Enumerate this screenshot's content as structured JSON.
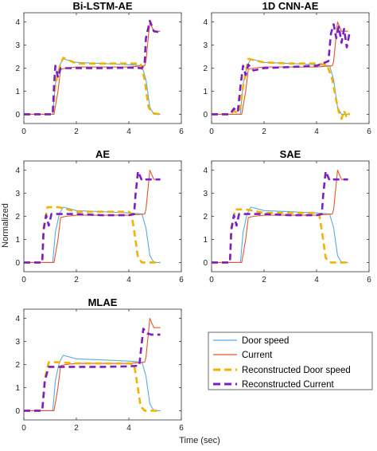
{
  "figure": {
    "xlabel": "Time (sec)",
    "ylabel": "Normalized"
  },
  "legend": [
    {
      "label": "Door speed",
      "color": "#5aa9e6",
      "dashed": false
    },
    {
      "label": "Current",
      "color": "#e4572e",
      "dashed": false
    },
    {
      "label": "Reconstructed Door speed",
      "color": "#f0b400",
      "dashed": true
    },
    {
      "label": "Reconstructed Current",
      "color": "#7b1fc2",
      "dashed": true
    }
  ],
  "chart_data": [
    {
      "type": "line",
      "title": "Bi-LSTM-AE",
      "xlim": [
        0,
        6
      ],
      "ylim": [
        -0.4,
        4.4
      ],
      "xticks": [
        0,
        2,
        4,
        6
      ],
      "yticks": [
        0,
        1,
        2,
        3,
        4
      ],
      "series": [
        {
          "name": "Door speed",
          "x": [
            0,
            1.1,
            1.2,
            1.35,
            1.5,
            2,
            3,
            4,
            4.5,
            4.65,
            4.8,
            4.95,
            5.2
          ],
          "y": [
            0,
            0,
            1.3,
            2.1,
            2.4,
            2.25,
            2.2,
            2.15,
            2.1,
            1.5,
            0.3,
            0,
            0
          ]
        },
        {
          "name": "Current",
          "x": [
            0,
            1.15,
            1.3,
            1.4,
            1.6,
            2,
            3,
            4,
            4.6,
            4.65,
            4.8,
            4.95,
            5.2
          ],
          "y": [
            0,
            0,
            1,
            1.95,
            2,
            2.05,
            2.05,
            2.05,
            2.1,
            2.3,
            4,
            3.6,
            3.6
          ]
        },
        {
          "name": "Reconstructed Door speed",
          "x": [
            0,
            1.1,
            1.2,
            1.4,
            1.5,
            2,
            3,
            4,
            4.45,
            4.6,
            4.75,
            4.9,
            5.2
          ],
          "y": [
            0,
            0,
            1.3,
            2.2,
            2.45,
            2.2,
            2.2,
            2.2,
            2.2,
            1.5,
            0.3,
            0.05,
            0
          ]
        },
        {
          "name": "Reconstructed Current",
          "x": [
            0,
            1.1,
            1.15,
            1.2,
            1.3,
            1.4,
            1.6,
            2,
            3,
            4,
            4.5,
            4.6,
            4.65,
            4.8,
            4.95,
            5.2
          ],
          "y": [
            0,
            0,
            1.2,
            2.1,
            1.6,
            2,
            2,
            2,
            2,
            2.02,
            2,
            2.2,
            3.3,
            4.05,
            3.6,
            3.55
          ]
        }
      ]
    },
    {
      "type": "line",
      "title": "1D CNN-AE",
      "xlim": [
        0,
        6
      ],
      "ylim": [
        -0.4,
        4.4
      ],
      "xticks": [
        0,
        2,
        4,
        6
      ],
      "yticks": [
        0,
        1,
        2,
        3,
        4
      ],
      "series": [
        {
          "name": "Door speed",
          "x": [
            0,
            1.1,
            1.2,
            1.35,
            1.5,
            2,
            3,
            4,
            4.5,
            4.65,
            4.8,
            4.95,
            5.2
          ],
          "y": [
            0,
            0,
            1.3,
            2.1,
            2.4,
            2.25,
            2.2,
            2.15,
            2.1,
            1.5,
            0.3,
            0,
            0
          ]
        },
        {
          "name": "Current",
          "x": [
            0,
            1.15,
            1.3,
            1.4,
            1.6,
            2,
            3,
            4,
            4.6,
            4.65,
            4.8,
            4.95,
            5.2
          ],
          "y": [
            0,
            0,
            1,
            1.95,
            2,
            2.05,
            2.05,
            2.05,
            2.1,
            2.3,
            4,
            3.6,
            3.6
          ]
        },
        {
          "name": "Reconstructed Door speed",
          "x": [
            0,
            0.7,
            0.85,
            1,
            1.1,
            1.2,
            1.4,
            1.6,
            2,
            3,
            4,
            4.4,
            4.6,
            4.75,
            4.85,
            4.95,
            5.05,
            5.15,
            5.25
          ],
          "y": [
            0,
            0,
            0.15,
            0.05,
            0.35,
            1.2,
            2.4,
            2.35,
            2.25,
            2.2,
            2.2,
            2.15,
            1.5,
            0.6,
            0.1,
            -0.2,
            0.15,
            -0.15,
            0.05
          ]
        },
        {
          "name": "Reconstructed Current",
          "x": [
            0,
            0.7,
            0.85,
            1,
            1.1,
            1.2,
            1.3,
            1.4,
            1.6,
            2,
            3,
            4,
            4.45,
            4.55,
            4.65,
            4.75,
            4.85,
            4.95,
            5.05,
            5.15,
            5.25
          ],
          "y": [
            0,
            0,
            0.25,
            0.1,
            1.2,
            2.1,
            1.7,
            2.15,
            1.9,
            2,
            2.05,
            2.1,
            2.3,
            3.5,
            3.9,
            3.3,
            3.8,
            3.1,
            3.7,
            2.9,
            3.5
          ]
        }
      ]
    },
    {
      "type": "line",
      "title": "AE",
      "xlim": [
        0,
        6
      ],
      "ylim": [
        -0.4,
        4.4
      ],
      "xticks": [
        0,
        2,
        4,
        6
      ],
      "yticks": [
        0,
        1,
        2,
        3,
        4
      ],
      "series": [
        {
          "name": "Door speed",
          "x": [
            0,
            1.1,
            1.2,
            1.35,
            1.5,
            2,
            3,
            4,
            4.5,
            4.65,
            4.8,
            4.95,
            5.2
          ],
          "y": [
            0,
            0,
            1.3,
            2.1,
            2.4,
            2.25,
            2.2,
            2.15,
            2.1,
            1.5,
            0.3,
            0,
            0
          ]
        },
        {
          "name": "Current",
          "x": [
            0,
            1.15,
            1.3,
            1.4,
            1.6,
            2,
            3,
            4,
            4.6,
            4.65,
            4.8,
            4.95,
            5.2
          ],
          "y": [
            0,
            0,
            1,
            1.95,
            2,
            2.05,
            2.05,
            2.05,
            2.1,
            2.3,
            4,
            3.6,
            3.6
          ]
        },
        {
          "name": "Reconstructed Door speed",
          "x": [
            0,
            0.7,
            0.75,
            0.9,
            1.3,
            2,
            3,
            4,
            4.1,
            4.2,
            4.35,
            4.5,
            5.2
          ],
          "y": [
            0,
            0,
            1.5,
            2.4,
            2.4,
            2.2,
            2.2,
            2.2,
            2.1,
            1.4,
            0.2,
            0,
            0
          ]
        },
        {
          "name": "Reconstructed Current",
          "x": [
            0,
            0.7,
            0.75,
            0.85,
            0.95,
            1.05,
            1.3,
            2,
            3,
            4,
            4.2,
            4.25,
            4.35,
            4.5,
            4.65,
            5.2
          ],
          "y": [
            0,
            0,
            1.4,
            2.05,
            1.6,
            2.1,
            2.1,
            2.1,
            2.05,
            2.05,
            2.1,
            2.9,
            3.95,
            3.55,
            3.6,
            3.6
          ]
        }
      ]
    },
    {
      "type": "line",
      "title": "SAE",
      "xlim": [
        0,
        6
      ],
      "ylim": [
        -0.4,
        4.4
      ],
      "xticks": [
        0,
        2,
        4,
        6
      ],
      "yticks": [
        0,
        1,
        2,
        3,
        4
      ],
      "series": [
        {
          "name": "Door speed",
          "x": [
            0,
            1.1,
            1.2,
            1.35,
            1.5,
            2,
            3,
            4,
            4.5,
            4.65,
            4.8,
            4.95,
            5.2
          ],
          "y": [
            0,
            0,
            1.3,
            2.1,
            2.4,
            2.25,
            2.2,
            2.15,
            2.1,
            1.5,
            0.3,
            0,
            0
          ]
        },
        {
          "name": "Current",
          "x": [
            0,
            1.15,
            1.3,
            1.4,
            1.6,
            2,
            3,
            4,
            4.6,
            4.65,
            4.8,
            4.95,
            5.2
          ],
          "y": [
            0,
            0,
            1,
            1.95,
            2,
            2.05,
            2.05,
            2.05,
            2.1,
            2.3,
            4,
            3.6,
            3.6
          ]
        },
        {
          "name": "Reconstructed Door speed",
          "x": [
            0,
            0.7,
            0.75,
            0.9,
            1.3,
            2,
            3,
            4,
            4.1,
            4.2,
            4.35,
            4.5,
            5.2
          ],
          "y": [
            0,
            0,
            1.5,
            2.3,
            2.3,
            2.15,
            2.15,
            2.15,
            2.1,
            1.4,
            0.2,
            0,
            0
          ]
        },
        {
          "name": "Reconstructed Current",
          "x": [
            0,
            0.7,
            0.75,
            0.85,
            0.95,
            1.05,
            1.3,
            2,
            3,
            4,
            4.2,
            4.25,
            4.35,
            4.5,
            4.65,
            5.2
          ],
          "y": [
            0,
            0,
            1.4,
            2.05,
            1.6,
            2.1,
            2.1,
            2.1,
            2.05,
            2.05,
            2.1,
            2.9,
            3.95,
            3.55,
            3.6,
            3.6
          ]
        }
      ]
    },
    {
      "type": "line",
      "title": "MLAE",
      "xlim": [
        0,
        6
      ],
      "ylim": [
        -0.4,
        4.4
      ],
      "xticks": [
        0,
        2,
        4,
        6
      ],
      "yticks": [
        0,
        1,
        2,
        3,
        4
      ],
      "series": [
        {
          "name": "Door speed",
          "x": [
            0,
            1.1,
            1.2,
            1.35,
            1.5,
            2,
            3,
            4,
            4.5,
            4.65,
            4.8,
            4.95,
            5.2
          ],
          "y": [
            0,
            0,
            1.3,
            2.1,
            2.4,
            2.25,
            2.2,
            2.15,
            2.1,
            1.5,
            0.3,
            0,
            0
          ]
        },
        {
          "name": "Current",
          "x": [
            0,
            1.15,
            1.3,
            1.4,
            1.6,
            2,
            3,
            4,
            4.6,
            4.65,
            4.8,
            4.95,
            5.2
          ],
          "y": [
            0,
            0,
            1,
            1.95,
            2,
            2.05,
            2.05,
            2.05,
            2.1,
            2.3,
            4,
            3.6,
            3.6
          ]
        },
        {
          "name": "Reconstructed Door speed",
          "x": [
            0,
            0.7,
            0.8,
            0.95,
            1.3,
            2,
            3,
            4,
            4.2,
            4.3,
            4.45,
            4.6,
            5.2
          ],
          "y": [
            0,
            0,
            1.4,
            2.1,
            2.1,
            2.05,
            2.05,
            2.05,
            2,
            1.3,
            0.2,
            0,
            0
          ]
        },
        {
          "name": "Reconstructed Current",
          "x": [
            0,
            0.7,
            0.8,
            0.95,
            1.3,
            2,
            3,
            4,
            4.4,
            4.45,
            4.55,
            4.7,
            4.85,
            5.2
          ],
          "y": [
            0,
            0,
            1.3,
            1.9,
            1.9,
            1.9,
            1.9,
            1.92,
            1.95,
            2.5,
            3.55,
            3.35,
            3.3,
            3.3
          ]
        }
      ]
    }
  ]
}
